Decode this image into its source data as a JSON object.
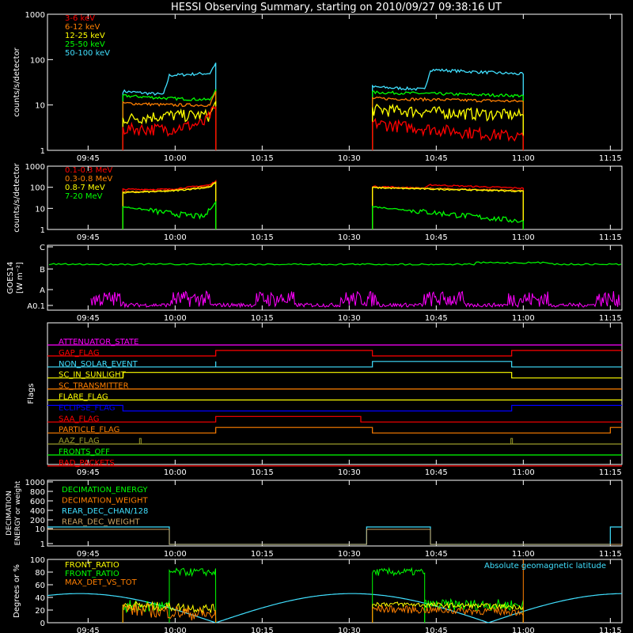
{
  "title": "HESSI Observing Summary, starting on 2010/09/27 09:38:16 UT",
  "colors": {
    "red": "#ff0000",
    "orange": "#ff7f00",
    "yellow": "#ffff00",
    "green": "#00ff00",
    "cyan": "#40e0ff",
    "magenta": "#ff00ff",
    "blue": "#0000ff",
    "olive": "#9a9a2a",
    "tan": "#c8a060",
    "white": "#ffffff"
  },
  "time_axis": {
    "ticks": [
      "09:45",
      "10:00",
      "10:15",
      "10:30",
      "10:45",
      "11:00",
      "11:15"
    ]
  },
  "chart_data": [
    {
      "type": "line",
      "name": "xray-low",
      "ylabel": "counts/s/detector",
      "yscale": "log",
      "ylim": [
        1,
        1000
      ],
      "yticks": [
        "1",
        "10",
        "100",
        "1000"
      ],
      "legend": [
        {
          "label": "3-6 keV",
          "color": "#ff0000"
        },
        {
          "label": "6-12 keV",
          "color": "#ff7f00"
        },
        {
          "label": "12-25 keV",
          "color": "#ffff00"
        },
        {
          "label": "25-50 keV",
          "color": "#00ff00"
        },
        {
          "label": "50-100 keV",
          "color": "#40e0ff"
        }
      ],
      "series": [
        {
          "color": "#40e0ff",
          "segments": [
            [
              [
                "09:51",
                20
              ],
              [
                "09:58",
                17
              ],
              [
                "09:59",
                45
              ],
              [
                "10:06",
                50
              ],
              [
                "10:07",
                85
              ]
            ],
            [
              [
                "10:34",
                25
              ],
              [
                "10:43",
                22
              ],
              [
                "10:44",
                60
              ],
              [
                "11:00",
                48
              ]
            ]
          ]
        },
        {
          "color": "#00ff00",
          "segments": [
            [
              [
                "09:51",
                16
              ],
              [
                "09:59",
                14
              ],
              [
                "10:06",
                13
              ],
              [
                "10:07",
                22
              ]
            ],
            [
              [
                "10:34",
                19
              ],
              [
                "11:00",
                16
              ]
            ]
          ]
        },
        {
          "color": "#ff7f00",
          "segments": [
            [
              [
                "09:51",
                11
              ],
              [
                "09:59",
                10
              ],
              [
                "10:06",
                10
              ],
              [
                "10:07",
                20
              ]
            ],
            [
              [
                "10:34",
                14
              ],
              [
                "11:00",
                12
              ]
            ]
          ]
        },
        {
          "color": "#ffff00",
          "segments": [
            [
              [
                "09:51",
                5
              ],
              [
                "09:59",
                6
              ],
              [
                "10:06",
                6
              ],
              [
                "10:07",
                12
              ]
            ],
            [
              [
                "10:34",
                8
              ],
              [
                "11:00",
                6
              ]
            ]
          ]
        },
        {
          "color": "#ff0000",
          "segments": [
            [
              [
                "09:51",
                3
              ],
              [
                "09:59",
                3
              ],
              [
                "10:05",
                4
              ],
              [
                "10:07",
                9
              ]
            ],
            [
              [
                "10:34",
                4
              ],
              [
                "10:44",
                3
              ],
              [
                "11:00",
                2
              ]
            ]
          ]
        }
      ]
    },
    {
      "type": "line",
      "name": "gamma",
      "ylabel": "counts/s/detector",
      "yscale": "log",
      "ylim": [
        1,
        1000
      ],
      "yticks": [
        "1",
        "10",
        "100",
        "1000"
      ],
      "legend": [
        {
          "label": "0.1-0.3 MeV",
          "color": "#ff0000"
        },
        {
          "label": "0.3-0.8 MeV",
          "color": "#ff7f00"
        },
        {
          "label": "0.8-7 MeV",
          "color": "#ffff00"
        },
        {
          "label": "7-20 MeV",
          "color": "#00ff00"
        }
      ],
      "series": [
        {
          "color": "#ff0000",
          "segments": [
            [
              [
                "09:51",
                80
              ],
              [
                "09:59",
                80
              ],
              [
                "10:06",
                130
              ],
              [
                "10:07",
                200
              ]
            ],
            [
              [
                "10:34",
                110
              ],
              [
                "10:43",
                90
              ],
              [
                "10:44",
                130
              ],
              [
                "11:00",
                90
              ]
            ]
          ]
        },
        {
          "color": "#ff7f00",
          "segments": [
            [
              [
                "09:51",
                60
              ],
              [
                "09:59",
                70
              ],
              [
                "10:06",
                110
              ],
              [
                "10:07",
                180
              ]
            ],
            [
              [
                "10:34",
                100
              ],
              [
                "11:00",
                70
              ]
            ]
          ]
        },
        {
          "color": "#ffff00",
          "segments": [
            [
              [
                "09:51",
                55
              ],
              [
                "09:59",
                65
              ],
              [
                "10:06",
                100
              ],
              [
                "10:07",
                170
              ]
            ],
            [
              [
                "10:34",
                95
              ],
              [
                "11:00",
                65
              ]
            ]
          ]
        },
        {
          "color": "#00ff00",
          "segments": [
            [
              [
                "09:51",
                12
              ],
              [
                "09:59",
                6
              ],
              [
                "10:05",
                4
              ],
              [
                "10:07",
                20
              ]
            ],
            [
              [
                "10:34",
                12
              ],
              [
                "11:00",
                2.5
              ]
            ]
          ]
        }
      ]
    },
    {
      "type": "line",
      "name": "goes",
      "ylabel": "GOES14",
      "ylabel2": "[W m⁻²]",
      "yticks": [
        "A0.1",
        "A",
        "B",
        "C"
      ],
      "series": [
        {
          "color": "#00ff00",
          "segments": [
            [
              [
                "09:38",
                5.6
              ],
              [
                "10:30",
                5.4
              ],
              [
                "11:00",
                6.1
              ],
              [
                "11:17",
                5.6
              ]
            ]
          ]
        },
        {
          "color": "#ff00ff",
          "style": "noise",
          "range": [
            "09:50",
            "11:17"
          ],
          "base": 0.3,
          "amp": 1.5
        }
      ]
    },
    {
      "type": "step",
      "name": "flags",
      "ylabel": "Flags",
      "rows": [
        {
          "label": "ATTENUATOR_STATE",
          "color": "#ff00ff",
          "transitions": [],
          "start": 0
        },
        {
          "label": "GAP_FLAG",
          "color": "#ff0000",
          "transitions": [
            "10:07",
            "10:34",
            "10:58"
          ],
          "start": 0
        },
        {
          "label": "NON_SOLAR_EVENT",
          "color": "#40e0ff",
          "transitions": [
            "10:07",
            "10:07",
            "10:34",
            "10:58"
          ],
          "start": 0
        },
        {
          "label": "SC_IN_SUNLIGHT",
          "color": "#ffff00",
          "transitions": [
            "09:51",
            "10:58"
          ],
          "start": 0
        },
        {
          "label": "SC_TRANSMITTER",
          "color": "#ff7f00",
          "transitions": [],
          "start": 0
        },
        {
          "label": "FLARE_FLAG",
          "color": "#ffff00",
          "transitions": [],
          "start": 0
        },
        {
          "label": "ECLIPSE_FLAG",
          "color": "#0000ff",
          "transitions": [
            "09:51",
            "10:58"
          ],
          "start": 1
        },
        {
          "label": "SAA_FLAG",
          "color": "#ff0000",
          "transitions": [
            "10:07",
            "10:32"
          ],
          "start": 0
        },
        {
          "label": "PARTICLE_FLAG",
          "color": "#ff7f00",
          "transitions": [
            "10:07",
            "10:34",
            "11:15"
          ],
          "start": 0
        },
        {
          "label": "AAZ_FLAG",
          "color": "#9a9a2a",
          "transitions": [],
          "pulses": [
            "09:54",
            "10:58"
          ],
          "start": 0
        },
        {
          "label": "FRONTS_OFF",
          "color": "#00ff00",
          "transitions": [],
          "start": 0
        },
        {
          "label": "BAD_PACKETS",
          "color": "#ff0000",
          "transitions": [],
          "start": 0
        }
      ]
    },
    {
      "type": "step",
      "name": "decimation",
      "ylabel": "DECIMATION",
      "ylabel2": "ENERGY or weight",
      "yticks": [
        "1",
        "10",
        "200",
        "400",
        "600",
        "800",
        "1000"
      ],
      "legend": [
        {
          "label": "DECIMATION_ENERGY",
          "color": "#00ff00"
        },
        {
          "label": "DECIMATION_WEIGHT",
          "color": "#ff7f00"
        },
        {
          "label": "REAR_DEC_CHAN/128",
          "color": "#40e0ff"
        },
        {
          "label": "REAR_DEC_WEIGHT",
          "color": "#c8a060"
        }
      ]
    },
    {
      "type": "line",
      "name": "ratios",
      "ylabel": "Degrees or %",
      "ylim": [
        0,
        100
      ],
      "yticks": [
        "0",
        "20",
        "40",
        "60",
        "80",
        "100"
      ],
      "legend": [
        {
          "label": "FRONT_RATIO",
          "color": "#ffff00"
        },
        {
          "label": "FRONT_RATIO",
          "color": "#00ff00"
        },
        {
          "label": "MAX_DET_VS_TOT",
          "color": "#ff7f00"
        }
      ],
      "legend_right": {
        "label": "Absolute geomagnetic latitude",
        "color": "#40e0ff"
      }
    }
  ]
}
